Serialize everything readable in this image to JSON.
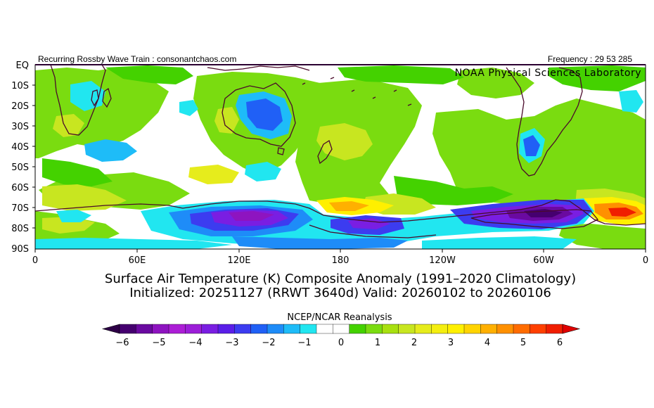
{
  "header": {
    "left_text": "Recurring Rossby Wave Train : consonantchaos.com",
    "right_text": "Frequency : 29 53 285",
    "lab_text": "NOAA Physical Sciences Laboratory"
  },
  "map": {
    "lat_labels": [
      "EQ",
      "10S",
      "20S",
      "30S",
      "40S",
      "50S",
      "60S",
      "70S",
      "80S",
      "90S"
    ],
    "lon_labels": [
      "0",
      "60E",
      "120E",
      "180",
      "120W",
      "60W",
      "0"
    ]
  },
  "titles": {
    "line1": "Surface Air Temperature (K) Composite Anomaly (1991–2020 Climatology)",
    "line2": "Initialized: 20251127 (RRWT 3640d) Valid: 20260102 to 20260106"
  },
  "colorbar": {
    "title": "NCEP/NCAR Reanalysis",
    "tick_labels": [
      "−6",
      "−5",
      "−4",
      "−3",
      "−2",
      "−1",
      "0",
      "1",
      "2",
      "3",
      "4",
      "5",
      "6"
    ],
    "colors": [
      "#45006f",
      "#6a0aa0",
      "#8e14c0",
      "#ac1ed6",
      "#9c1ed8",
      "#7a1ee2",
      "#5a1ee8",
      "#3c3cf0",
      "#2060f6",
      "#1e8cf8",
      "#1ebcf8",
      "#21e6f0",
      "#ffffff",
      "#ffffff",
      "#44d200",
      "#7adc10",
      "#a8e010",
      "#c8e620",
      "#e6ec1c",
      "#f4ee10",
      "#fff000",
      "#ffd400",
      "#ffb000",
      "#ff9000",
      "#ff6c00",
      "#ff4000",
      "#f01e00"
    ],
    "under_color": "#2d0046",
    "over_color": "#e00000"
  }
}
